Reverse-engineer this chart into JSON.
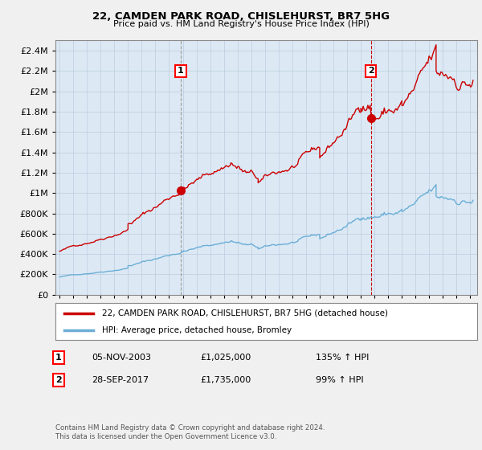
{
  "title": "22, CAMDEN PARK ROAD, CHISLEHURST, BR7 5HG",
  "subtitle": "Price paid vs. HM Land Registry's House Price Index (HPI)",
  "hpi_color": "#6baed6",
  "sold_color": "#cc0000",
  "plot_bg": "#dce9f5",
  "fig_bg": "#f0f0f0",
  "ylim": [
    0,
    2500000
  ],
  "yticks": [
    0,
    200000,
    400000,
    600000,
    800000,
    1000000,
    1200000,
    1400000,
    1600000,
    1800000,
    2000000,
    2200000,
    2400000
  ],
  "xlim_min": 1994.7,
  "xlim_max": 2025.5,
  "sale1_x": 2003.85,
  "sale1_y": 1025000,
  "sale2_x": 2017.74,
  "sale2_y": 1735000,
  "legend_line1": "22, CAMDEN PARK ROAD, CHISLEHURST, BR7 5HG (detached house)",
  "legend_line2": "HPI: Average price, detached house, Bromley",
  "annotation1_label": "1",
  "annotation1_date": "05-NOV-2003",
  "annotation1_price": "£1,025,000",
  "annotation1_hpi": "135% ↑ HPI",
  "annotation2_label": "2",
  "annotation2_date": "28-SEP-2017",
  "annotation2_price": "£1,735,000",
  "annotation2_hpi": "99% ↑ HPI",
  "footer": "Contains HM Land Registry data © Crown copyright and database right 2024.\nThis data is licensed under the Open Government Licence v3.0."
}
